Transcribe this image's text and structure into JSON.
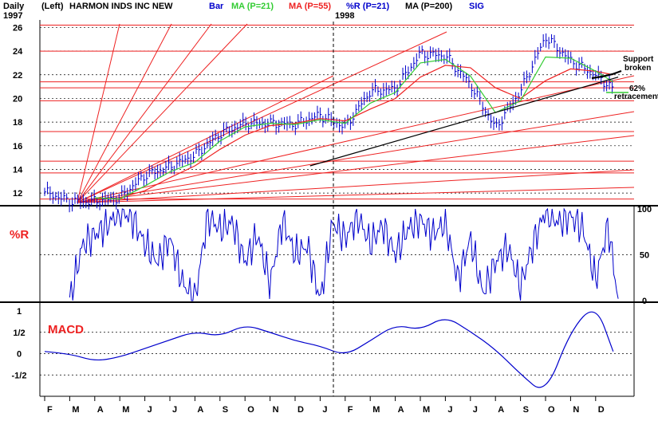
{
  "header": {
    "period": "Daily",
    "left_label": "(Left)",
    "title": "HARMON INDS INC NEW",
    "year_start": "1997",
    "year_mid": "1998",
    "legend": [
      {
        "label": "Bar",
        "color": "#0000cc"
      },
      {
        "label": "MA (P=21)",
        "color": "#33cc33"
      },
      {
        "label": "MA (P=55)",
        "color": "#ee2222"
      },
      {
        "label": "%R (P=21)",
        "color": "#0000cc"
      },
      {
        "label": "MA (P=200)",
        "color": "#000000"
      },
      {
        "label": "SIG",
        "color": "#0000cc"
      }
    ]
  },
  "annotations": {
    "support": [
      "Support",
      "broken"
    ],
    "retracement": [
      "62%",
      "retracement"
    ],
    "r_label": "%R",
    "macd_label": "MACD"
  },
  "colors": {
    "price": "#0000cc",
    "ma21": "#33cc33",
    "ma55": "#ee2222",
    "ma200": "#000000",
    "fan": "#ee2222",
    "r": "#0000cc",
    "macd": "#0000cc",
    "labels": "#ee2222"
  },
  "chart_data": [
    {
      "type": "line",
      "panel": "price",
      "series_style": "bar (OHLC)",
      "ylim": [
        11,
        26.5
      ],
      "ytick_labels": [
        "12",
        "14",
        "16",
        "18",
        "20",
        "22",
        "24",
        "26"
      ],
      "x_tick_labels": [
        "F",
        "M",
        "A",
        "M",
        "J",
        "J",
        "A",
        "S",
        "O",
        "N",
        "D",
        "J",
        "F",
        "M",
        "A",
        "M",
        "J",
        "J",
        "A",
        "S",
        "O",
        "N",
        "D"
      ],
      "grid": true,
      "x": [
        0,
        1,
        2,
        3,
        4,
        5,
        6,
        7,
        8,
        9,
        10,
        11,
        12,
        13,
        14,
        15,
        16,
        17,
        18,
        19,
        20,
        21,
        22,
        22.7
      ],
      "close": [
        12.1,
        11.3,
        11.3,
        11.6,
        13.5,
        14.2,
        15.2,
        17.0,
        17.9,
        17.9,
        17.8,
        18.6,
        17.6,
        20.6,
        20.8,
        23.8,
        23.6,
        21.2,
        17.5,
        20.6,
        25.2,
        23.2,
        22.0,
        20.8
      ],
      "ma21": [
        null,
        null,
        11.6,
        11.5,
        12.6,
        13.8,
        14.6,
        16.4,
        17.6,
        17.9,
        17.8,
        18.2,
        17.9,
        19.6,
        20.5,
        23.0,
        23.3,
        21.9,
        18.8,
        19.8,
        23.5,
        23.4,
        22.3,
        21.4
      ],
      "ma55": [
        null,
        null,
        null,
        11.6,
        12.2,
        13.3,
        14.3,
        15.7,
        16.9,
        17.7,
        17.9,
        18.3,
        18.1,
        19.1,
        20.0,
        21.8,
        22.8,
        22.6,
        20.9,
        20.0,
        21.5,
        22.5,
        22.3,
        22.0
      ],
      "ma200_range": [
        [
          10.6,
          14.3
        ],
        [
          22.9,
          21.8
        ]
      ],
      "horizontal_levels": [
        26.2,
        24.0,
        21.4,
        20.9,
        19.8,
        17.2,
        14.7,
        13.7,
        11.5
      ],
      "fan_origin": [
        1.3,
        11.2
      ]
    },
    {
      "type": "line",
      "panel": "%R",
      "name": "%R (P=21)",
      "ylim": [
        0,
        100
      ],
      "ytick_labels": [
        "0",
        "50",
        "100"
      ],
      "x": [
        1.0,
        1.5,
        2.0,
        2.5,
        3.0,
        3.5,
        4.0,
        4.5,
        5.0,
        5.5,
        6.0,
        6.5,
        7.0,
        7.5,
        8.0,
        8.5,
        9.0,
        9.5,
        10.0,
        10.5,
        11.0,
        11.5,
        12.0,
        12.5,
        13.0,
        13.5,
        14.0,
        14.5,
        15.0,
        15.5,
        16.0,
        16.5,
        17.0,
        17.5,
        18.0,
        18.5,
        19.0,
        19.5,
        20.0,
        20.5,
        21.0,
        21.5,
        22.0,
        22.5,
        22.9
      ],
      "values": [
        0,
        60,
        72,
        82,
        98,
        90,
        62,
        42,
        68,
        20,
        0,
        92,
        78,
        85,
        42,
        72,
        18,
        88,
        50,
        60,
        0,
        85,
        68,
        92,
        62,
        82,
        50,
        78,
        88,
        72,
        85,
        22,
        68,
        8,
        42,
        58,
        15,
        62,
        98,
        85,
        92,
        78,
        22,
        82,
        0
      ]
    },
    {
      "type": "line",
      "panel": "MACD",
      "name": "MACD",
      "ylim": [
        -1,
        1.15
      ],
      "ytick_labels": [
        "1",
        "1/2",
        "0",
        "-1/2"
      ],
      "x": [
        0,
        1,
        2,
        3,
        4,
        5,
        6,
        7,
        8,
        9,
        10,
        11,
        12,
        13,
        14,
        15,
        16,
        17,
        18,
        19,
        20,
        21,
        22,
        22.7
      ],
      "values": [
        0.05,
        0.0,
        -0.18,
        -0.08,
        0.12,
        0.32,
        0.52,
        0.4,
        0.68,
        0.5,
        0.3,
        0.18,
        -0.05,
        0.3,
        0.68,
        0.55,
        0.88,
        0.52,
        0.1,
        -0.48,
        -0.98,
        0.55,
        1.18,
        0.05
      ]
    }
  ]
}
